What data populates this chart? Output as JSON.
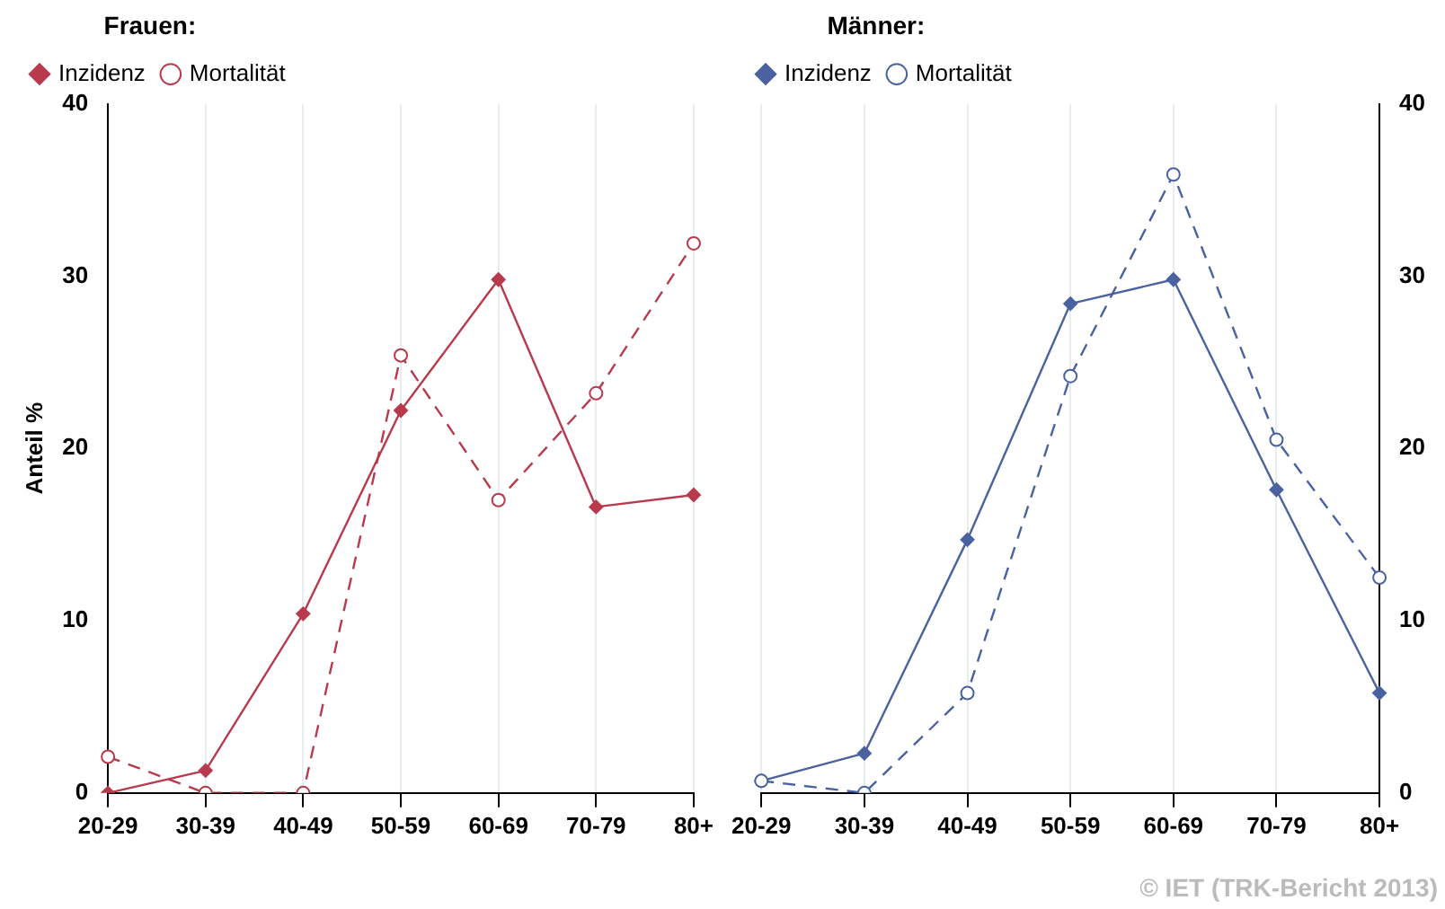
{
  "chart_data": [
    {
      "type": "line",
      "ylabel": "Anteil %",
      "legend_title": "Frauen:",
      "categories": [
        "20-29",
        "30-39",
        "40-49",
        "50-59",
        "60-69",
        "70-79",
        "80+"
      ],
      "series": [
        {
          "name": "Inzidenz",
          "color": "#b83a4c",
          "marker": "diamond",
          "line_style": "solid",
          "values": [
            0,
            1.3,
            10.4,
            22.2,
            29.8,
            16.6,
            17.3
          ]
        },
        {
          "name": "Mortalität",
          "color": "#b83a4c",
          "marker": "circle",
          "line_style": "dashed",
          "values": [
            2.1,
            0,
            0,
            25.4,
            17.0,
            23.2,
            31.9
          ]
        }
      ],
      "ylim": [
        0,
        40
      ],
      "yticks": [
        0,
        10,
        20,
        30,
        40
      ],
      "grid": "x",
      "legend": "top left"
    },
    {
      "type": "line",
      "legend_title": "Männer:",
      "categories": [
        "20-29",
        "30-39",
        "40-49",
        "50-59",
        "60-69",
        "70-79",
        "80+"
      ],
      "series": [
        {
          "name": "Inzidenz",
          "color": "#4a62a0",
          "marker": "diamond",
          "line_style": "solid",
          "values": [
            0.7,
            2.3,
            14.7,
            28.4,
            29.8,
            17.6,
            5.8
          ]
        },
        {
          "name": "Mortalität",
          "color": "#4a62a0",
          "marker": "circle",
          "line_style": "dashed",
          "values": [
            0.7,
            0,
            5.8,
            24.2,
            35.9,
            20.5,
            12.5
          ]
        }
      ],
      "ylim": [
        0,
        40
      ],
      "yticks": [
        0,
        10,
        20,
        30,
        40
      ],
      "grid": "x",
      "legend": "top left",
      "annotations": [
        "© IET (TRK-Bericht 2013)"
      ]
    }
  ]
}
